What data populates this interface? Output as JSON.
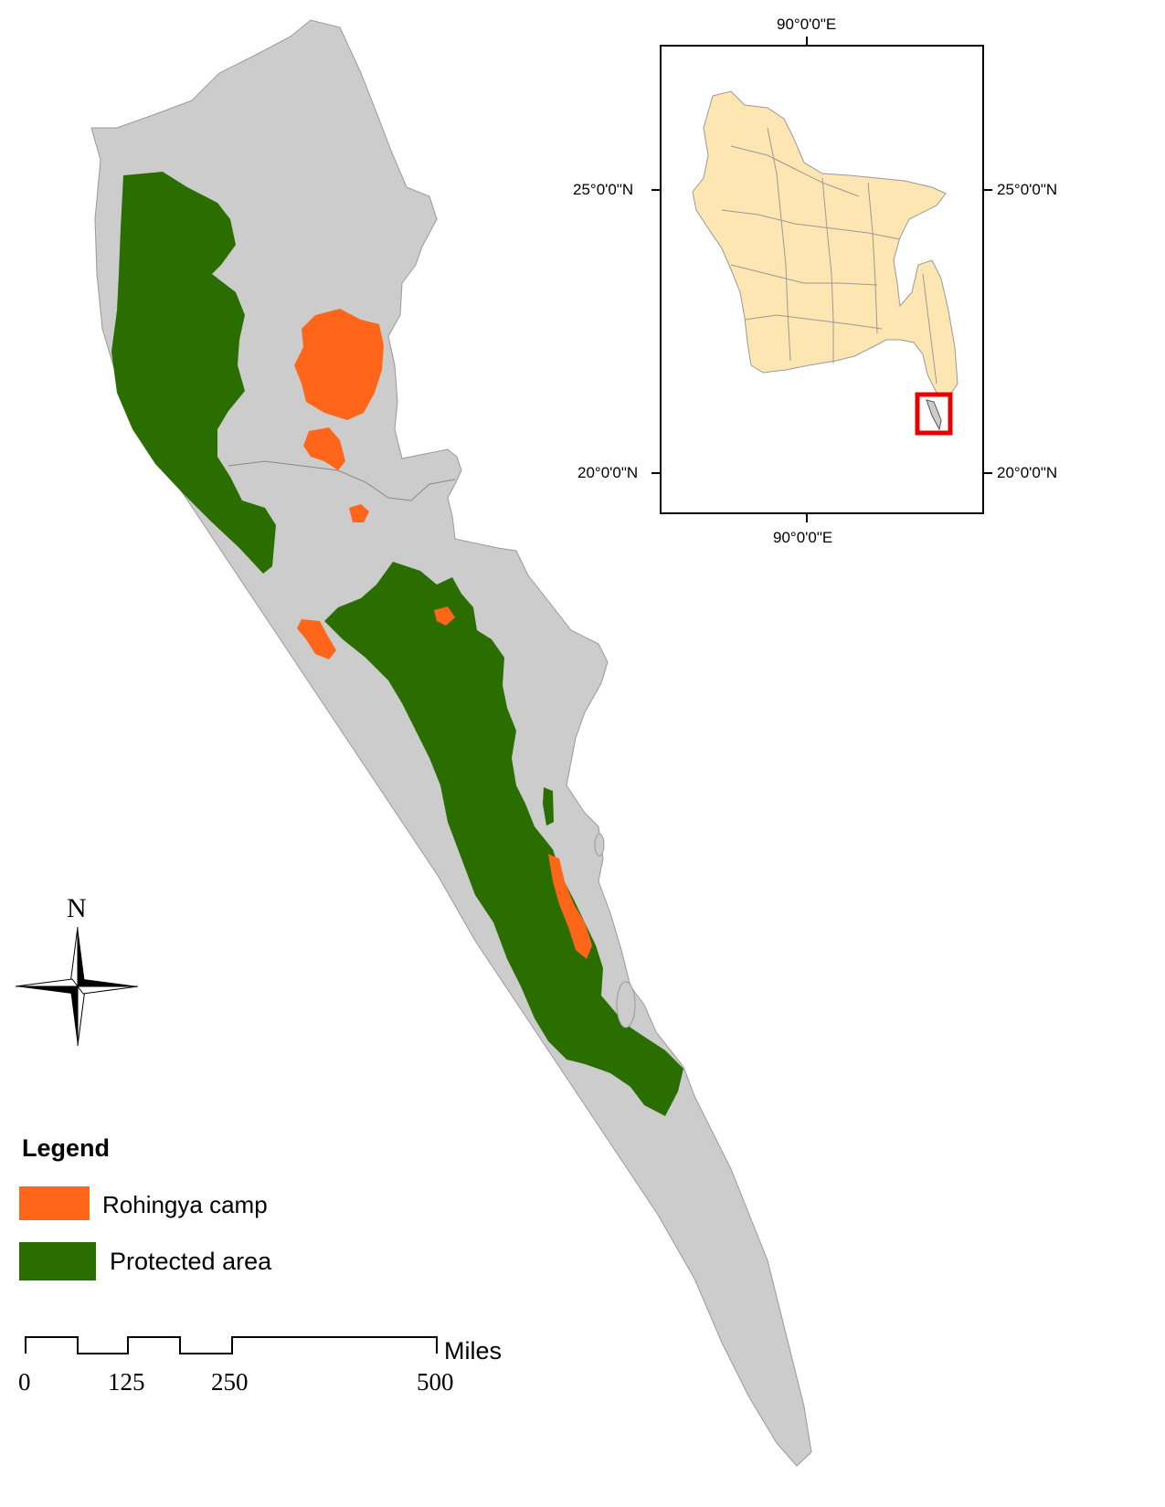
{
  "colors": {
    "land": "#cccccc",
    "protected_area": "#2a6e00",
    "rohingya_camp": "#ff6619",
    "inset_country_fill": "#fde6b2",
    "inset_highlight": "#e60000",
    "border": "#999999"
  },
  "inset_map": {
    "top_longitude_label": "90°0'0\"E",
    "bottom_longitude_label": "90°0'0\"E",
    "left_upper_latitude_label": "25°0'0\"N",
    "left_lower_latitude_label": "20°0'0\"N",
    "right_upper_latitude_label": "25°0'0\"N",
    "right_lower_latitude_label": "20°0'0\"N"
  },
  "north_arrow": {
    "letter": "N",
    "icon": "compass-rose-icon"
  },
  "legend": {
    "title": "Legend",
    "items": [
      {
        "label": "Rohingya camp",
        "color": "#ff6619"
      },
      {
        "label": "Protected area",
        "color": "#2a6e00"
      }
    ]
  },
  "scale_bar": {
    "unit": "Miles",
    "ticks": [
      "0",
      "125",
      "250",
      "500"
    ]
  }
}
